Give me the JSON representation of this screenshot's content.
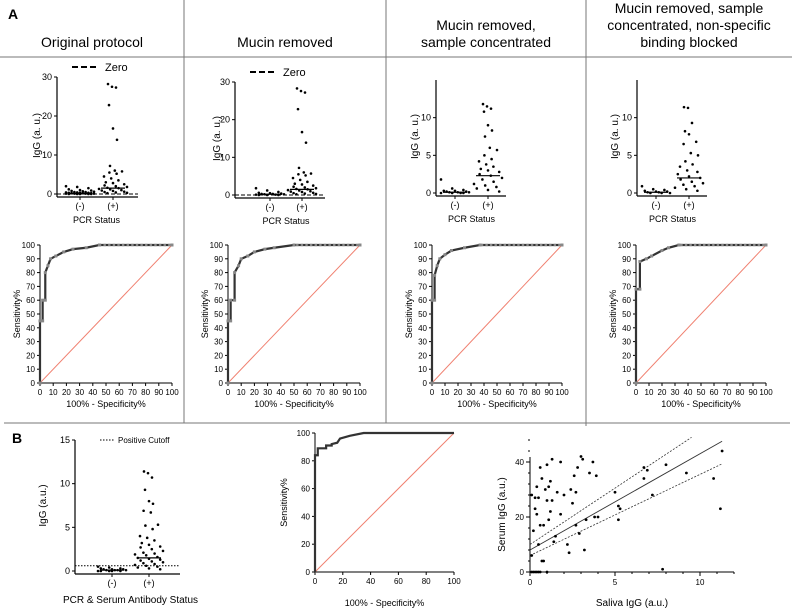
{
  "panel_labels": {
    "a": "A",
    "b": "B"
  },
  "titles": [
    "Original protocol",
    "Mucin removed",
    "Mucin removed,\nsample concentrated",
    "Mucin removed, sample\nconcentrated, non-specific\nbinding blocked"
  ],
  "chart_data": [
    {
      "id": "a1-dot",
      "type": "scatter",
      "subtype": "dot-plot",
      "ylabel": "IgG (a. u.)",
      "xlabel": "PCR Status",
      "categories": [
        "(-)",
        "(+)"
      ],
      "ylim": [
        0,
        30
      ],
      "yticks": [
        0,
        10,
        20,
        30
      ],
      "legend": {
        "label": "Zero",
        "style": "dashed",
        "position": "top"
      },
      "reference_line": 0,
      "series": [
        {
          "name": "(-)",
          "values": [
            2,
            1.8,
            1.5,
            1.2,
            1,
            0.9,
            0.8,
            0.7,
            0.6,
            0.5,
            0.5,
            0.4,
            0.4,
            0.3,
            0.3,
            0.3,
            0.2,
            0.2,
            0.2,
            0.1,
            0.1,
            0.1,
            0.1,
            0,
            0,
            0,
            0,
            0
          ],
          "median": 0.2
        },
        {
          "name": "(+)",
          "values": [
            28.2,
            27.5,
            27.3,
            22.8,
            16.8,
            13.9,
            7.2,
            6,
            5.8,
            5.5,
            5.2,
            4.5,
            4,
            3.5,
            3,
            2.8,
            2.5,
            2.2,
            2,
            1.8,
            1.6,
            1.5,
            1.3,
            1.2,
            1,
            0.9,
            0.8,
            0.6,
            0.5,
            0.4,
            0.3,
            0.2
          ],
          "median": 1.5
        }
      ]
    },
    {
      "id": "a2-dot",
      "type": "scatter",
      "subtype": "dot-plot",
      "ylabel": "IgG (a. u.)",
      "xlabel": "PCR Status",
      "categories": [
        "(-)",
        "(+)"
      ],
      "ylim": [
        0,
        30
      ],
      "yticks": [
        0,
        10,
        20,
        30
      ],
      "legend": {
        "label": "Zero",
        "style": "dashed",
        "position": "top"
      },
      "reference_line": 0,
      "series": [
        {
          "name": "(-)",
          "values": [
            1.8,
            1.2,
            0.8,
            0.6,
            0.5,
            0.4,
            0.3,
            0.3,
            0.2,
            0.2,
            0.1,
            0.1,
            0,
            0,
            0
          ],
          "median": 0.2
        },
        {
          "name": "(+)",
          "values": [
            28.3,
            27.6,
            27.2,
            22.8,
            16.7,
            13.9,
            7.2,
            6,
            5.7,
            5.5,
            5.2,
            4.5,
            4,
            3.5,
            3,
            2.8,
            2.5,
            2.2,
            2,
            1.8,
            1.6,
            1.5,
            1.3,
            1.2,
            1,
            0.9,
            0.8,
            0.6,
            0.5,
            0.4,
            0.3,
            0.2
          ],
          "median": 1.5
        }
      ]
    },
    {
      "id": "a3-dot",
      "type": "scatter",
      "subtype": "dot-plot",
      "ylabel": "IgG (a. u.)",
      "xlabel": "PCR Status",
      "categories": [
        "(-)",
        "(+)"
      ],
      "ylim": [
        0,
        15
      ],
      "yticks": [
        0,
        5,
        10
      ],
      "series": [
        {
          "name": "(-)",
          "values": [
            1.8,
            0.6,
            0.4,
            0.3,
            0.3,
            0.2,
            0.2,
            0.1,
            0.1,
            0.1,
            0,
            0,
            0,
            0
          ],
          "median": 0.1
        },
        {
          "name": "(+)",
          "values": [
            11.8,
            11.5,
            11.2,
            10.8,
            9,
            8.3,
            7.5,
            6,
            5.7,
            5,
            4.5,
            4.2,
            3.8,
            3.5,
            3.2,
            3,
            2.8,
            2.5,
            2.3,
            2,
            1.8,
            1.5,
            1.2,
            1,
            0.8,
            0.6,
            0.4,
            0.2
          ],
          "median": 2.3
        }
      ]
    },
    {
      "id": "a4-dot",
      "type": "scatter",
      "subtype": "dot-plot",
      "ylabel": "IgG (a. u.)",
      "xlabel": "PCR Status",
      "categories": [
        "(-)",
        "(+)"
      ],
      "ylim": [
        0,
        15
      ],
      "yticks": [
        0,
        5,
        10
      ],
      "series": [
        {
          "name": "(-)",
          "values": [
            0.9,
            0.5,
            0.4,
            0.3,
            0.2,
            0.2,
            0.1,
            0.1,
            0,
            0,
            0
          ],
          "median": 0.1
        },
        {
          "name": "(+)",
          "values": [
            11.4,
            11.3,
            9.3,
            8.2,
            7.8,
            6.8,
            6.5,
            5.3,
            5,
            4.2,
            3.8,
            3.5,
            3,
            2.8,
            2.5,
            2.2,
            2,
            1.8,
            1.5,
            1.3,
            1.1,
            0.9,
            0.7,
            0.5,
            0.3
          ],
          "median": 2
        }
      ]
    },
    {
      "id": "a1-roc",
      "type": "line",
      "subtype": "roc",
      "xlabel": "100% - Specificity%",
      "ylabel": "Sensitivity%",
      "xlim": [
        0,
        100
      ],
      "ylim": [
        0,
        100
      ],
      "ticks": [
        0,
        10,
        20,
        30,
        40,
        50,
        60,
        70,
        80,
        90,
        100
      ],
      "curve": [
        [
          0,
          0
        ],
        [
          0,
          45
        ],
        [
          2,
          45
        ],
        [
          2,
          60
        ],
        [
          4,
          60
        ],
        [
          4,
          80
        ],
        [
          6,
          85
        ],
        [
          8,
          90
        ],
        [
          12,
          92
        ],
        [
          18,
          95
        ],
        [
          25,
          97
        ],
        [
          35,
          98
        ],
        [
          45,
          100
        ],
        [
          100,
          100
        ]
      ]
    },
    {
      "id": "a2-roc",
      "type": "line",
      "subtype": "roc",
      "xlabel": "100% - Specificity%",
      "ylabel": "Sensitivity%",
      "xlim": [
        0,
        100
      ],
      "ylim": [
        0,
        100
      ],
      "ticks": [
        0,
        10,
        20,
        30,
        40,
        50,
        60,
        70,
        80,
        90,
        100
      ],
      "curve": [
        [
          0,
          0
        ],
        [
          0,
          45
        ],
        [
          2,
          45
        ],
        [
          2,
          60
        ],
        [
          5,
          60
        ],
        [
          5,
          80
        ],
        [
          8,
          85
        ],
        [
          10,
          90
        ],
        [
          15,
          92
        ],
        [
          20,
          95
        ],
        [
          28,
          97
        ],
        [
          35,
          98
        ],
        [
          50,
          100
        ],
        [
          100,
          100
        ]
      ]
    },
    {
      "id": "a3-roc",
      "type": "line",
      "subtype": "roc",
      "xlabel": "100% - Specificity%",
      "ylabel": "Sensitivity%",
      "xlim": [
        0,
        100
      ],
      "ylim": [
        0,
        100
      ],
      "ticks": [
        0,
        10,
        20,
        30,
        40,
        50,
        60,
        70,
        80,
        90,
        100
      ],
      "curve": [
        [
          0,
          0
        ],
        [
          0,
          60
        ],
        [
          2,
          60
        ],
        [
          2,
          78
        ],
        [
          4,
          85
        ],
        [
          6,
          90
        ],
        [
          10,
          93
        ],
        [
          15,
          96
        ],
        [
          25,
          98
        ],
        [
          37,
          100
        ],
        [
          100,
          100
        ]
      ]
    },
    {
      "id": "a4-roc",
      "type": "line",
      "subtype": "roc",
      "xlabel": "100% - Specificity%",
      "ylabel": "Sensitivity%",
      "xlim": [
        0,
        100
      ],
      "ylim": [
        0,
        100
      ],
      "ticks": [
        0,
        10,
        20,
        30,
        40,
        50,
        60,
        70,
        80,
        90,
        100
      ],
      "curve": [
        [
          0,
          0
        ],
        [
          0,
          68
        ],
        [
          3,
          68
        ],
        [
          3,
          88
        ],
        [
          8,
          90
        ],
        [
          12,
          92
        ],
        [
          20,
          96
        ],
        [
          25,
          98
        ],
        [
          33,
          100
        ],
        [
          100,
          100
        ]
      ]
    },
    {
      "id": "b-dot",
      "type": "scatter",
      "subtype": "dot-plot",
      "ylabel": "IgG (a.u.)",
      "xlabel": "PCR & Serum Antibody Status",
      "categories": [
        "(-)",
        "(+)"
      ],
      "ylim": [
        0,
        15
      ],
      "yticks": [
        0,
        5,
        10,
        15
      ],
      "legend": {
        "label": "Positive Cutoff",
        "style": "dotted",
        "position": "top-right"
      },
      "reference_line": 0.6,
      "series": [
        {
          "name": "(-)",
          "values": [
            0.5,
            0.4,
            0.3,
            0.3,
            0.2,
            0.2,
            0.2,
            0.1,
            0.1,
            0.1,
            0.1,
            0,
            0,
            0,
            0,
            0
          ],
          "median": 0.1
        },
        {
          "name": "(+)",
          "values": [
            11.4,
            11.2,
            10.7,
            9.3,
            8,
            7.7,
            6.9,
            6.7,
            5.3,
            5.2,
            4.8,
            4,
            3.8,
            3.5,
            3.2,
            3,
            2.8,
            2.7,
            2.5,
            2.3,
            2.1,
            2,
            1.9,
            1.8,
            1.6,
            1.5,
            1.4,
            1.3,
            1.2,
            1.1,
            1,
            0.9,
            0.8,
            0.7,
            0.6,
            0.5,
            0.4,
            0.3,
            0.2
          ],
          "median": 1.5
        }
      ]
    },
    {
      "id": "b-roc",
      "type": "line",
      "subtype": "roc",
      "xlabel": "100% - Specificity%",
      "ylabel": "Sensitivity%",
      "xlim": [
        0,
        100
      ],
      "ylim": [
        0,
        100
      ],
      "ticks": [
        0,
        20,
        40,
        60,
        80,
        100
      ],
      "curve": [
        [
          0,
          0
        ],
        [
          0,
          84
        ],
        [
          2,
          84
        ],
        [
          2,
          89
        ],
        [
          8,
          89
        ],
        [
          8,
          91
        ],
        [
          12,
          91
        ],
        [
          12,
          92
        ],
        [
          16,
          93
        ],
        [
          18,
          96
        ],
        [
          25,
          98
        ],
        [
          35,
          100
        ],
        [
          100,
          100
        ]
      ]
    },
    {
      "id": "b-scatter",
      "type": "scatter",
      "xlabel": "Saliva IgG (a.u.)",
      "ylabel": "Serum IgG (a.u.)",
      "xlim": [
        0,
        12
      ],
      "ylim": [
        0,
        50
      ],
      "xticks": [
        0,
        5,
        10
      ],
      "yticks": [
        0,
        20,
        40
      ],
      "fit": {
        "slope": 3.5,
        "intercept": 8,
        "ci_low": [
          6,
          2.95
        ],
        "ci_high": [
          10,
          4.1
        ]
      },
      "points": [
        [
          0.1,
          28
        ],
        [
          0.2,
          15
        ],
        [
          0.3,
          27
        ],
        [
          0.3,
          23
        ],
        [
          0.4,
          31
        ],
        [
          0.4,
          21
        ],
        [
          0.5,
          27
        ],
        [
          0.5,
          10
        ],
        [
          0.6,
          38
        ],
        [
          0.6,
          17
        ],
        [
          0.7,
          34
        ],
        [
          0.7,
          4
        ],
        [
          0.8,
          4
        ],
        [
          0.8,
          17
        ],
        [
          0.9,
          30
        ],
        [
          1,
          39
        ],
        [
          1,
          26
        ],
        [
          1.1,
          31
        ],
        [
          1.1,
          19
        ],
        [
          1.2,
          33
        ],
        [
          1.2,
          22
        ],
        [
          1.3,
          41
        ],
        [
          1.3,
          26
        ],
        [
          1.4,
          11
        ],
        [
          1.5,
          13
        ],
        [
          1.6,
          29
        ],
        [
          1.8,
          40
        ],
        [
          1.8,
          21
        ],
        [
          2,
          28
        ],
        [
          2.2,
          10
        ],
        [
          2.3,
          7
        ],
        [
          2.4,
          30
        ],
        [
          2.5,
          25
        ],
        [
          2.6,
          35
        ],
        [
          2.7,
          29
        ],
        [
          2.7,
          17
        ],
        [
          2.8,
          38
        ],
        [
          2.9,
          14
        ],
        [
          3,
          42
        ],
        [
          3.1,
          41
        ],
        [
          3.2,
          8
        ],
        [
          3.3,
          19
        ],
        [
          3.5,
          36
        ],
        [
          3.7,
          40
        ],
        [
          3.8,
          20
        ],
        [
          3.9,
          35
        ],
        [
          4,
          20
        ],
        [
          5,
          29
        ],
        [
          5.2,
          24
        ],
        [
          5.2,
          19
        ],
        [
          5.3,
          23
        ],
        [
          6.7,
          38
        ],
        [
          6.7,
          34
        ],
        [
          6.9,
          37
        ],
        [
          7.2,
          28
        ],
        [
          7.8,
          1
        ],
        [
          8,
          39
        ],
        [
          9.2,
          36
        ],
        [
          10.8,
          34
        ],
        [
          11.2,
          23
        ],
        [
          11.3,
          44
        ],
        [
          0.1,
          0
        ],
        [
          0.2,
          0
        ],
        [
          0.3,
          0
        ],
        [
          0.4,
          0
        ],
        [
          0.5,
          0
        ],
        [
          0.6,
          0
        ],
        [
          1,
          0
        ],
        [
          0.1,
          6
        ]
      ]
    }
  ]
}
